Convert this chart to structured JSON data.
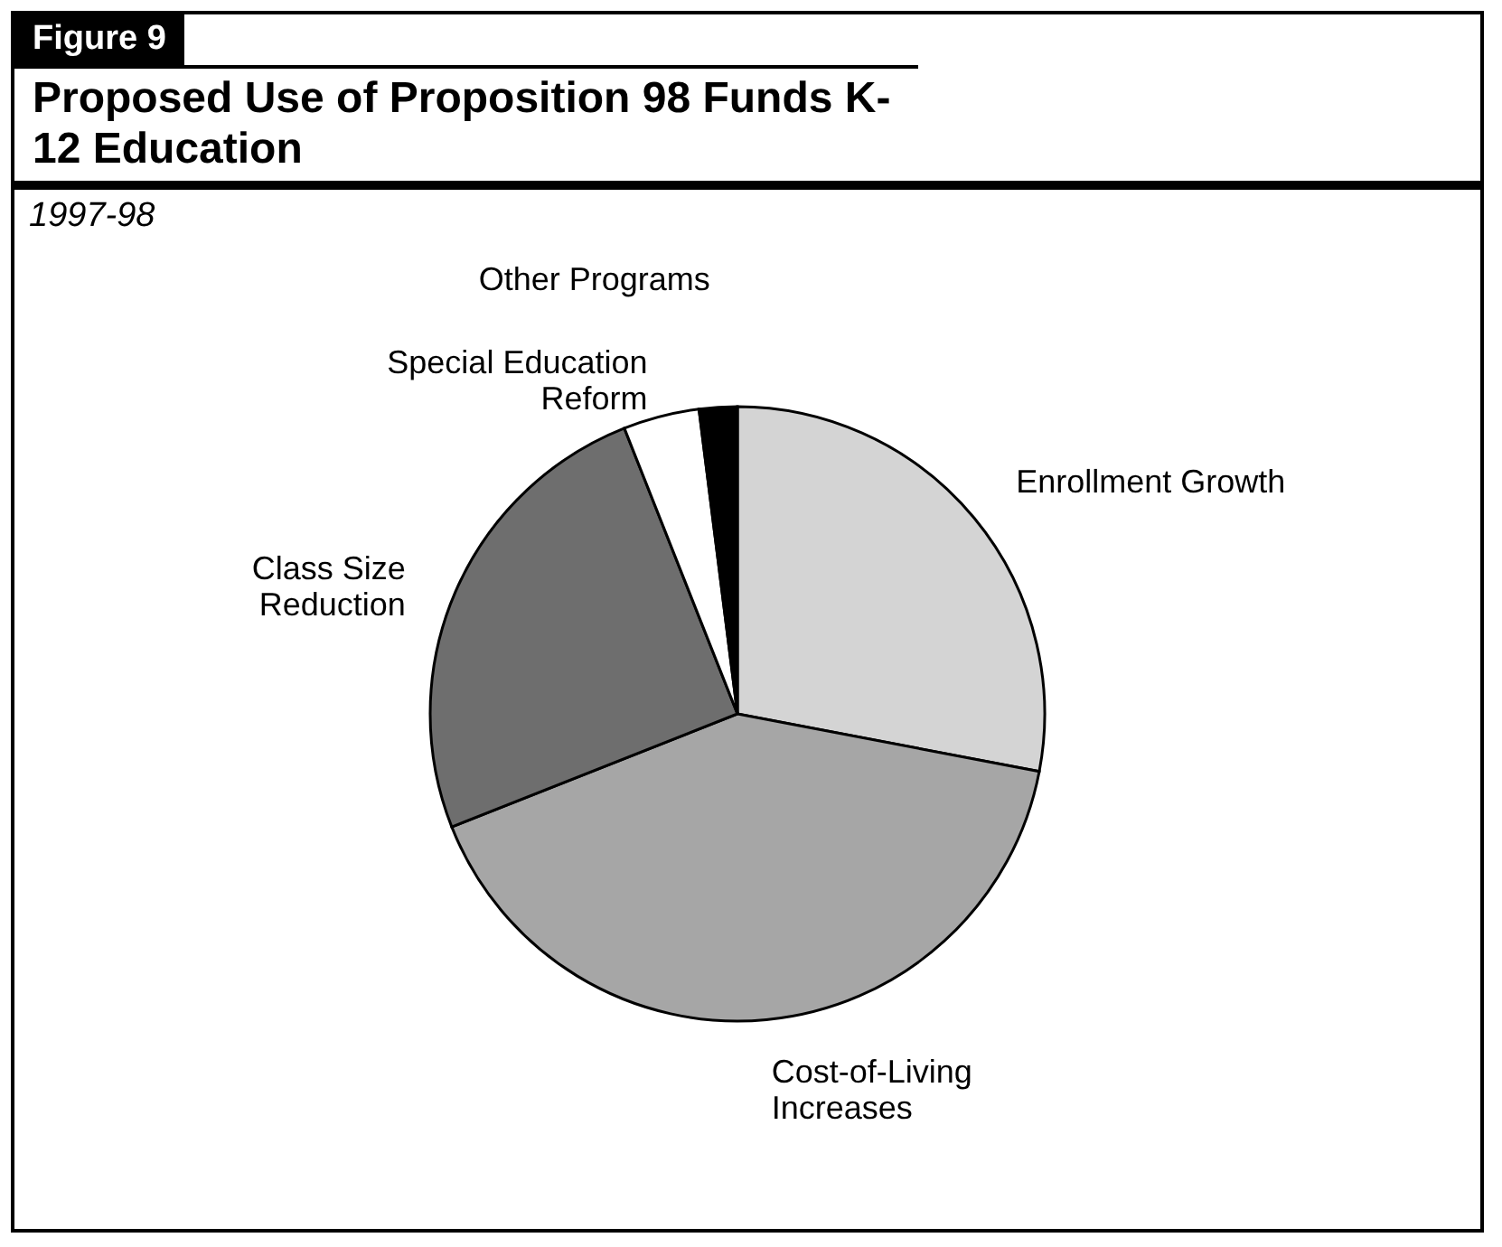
{
  "chart_data": {
    "type": "pie",
    "title": "Proposed Use of Proposition 98 Funds K-12 Education",
    "subtitle": "1997-98",
    "annotations": [
      "Figure 9"
    ],
    "categories": [
      "Enrollment Growth",
      "Cost-of-Living Increases",
      "Class Size Reduction",
      "Special Education Reform",
      "Other Programs"
    ],
    "values": [
      28,
      41,
      25,
      4,
      2
    ],
    "colors": [
      "#d4d4d4",
      "#a6a6a6",
      "#6e6e6e",
      "#ffffff",
      "#000000"
    ],
    "legend": false
  }
}
